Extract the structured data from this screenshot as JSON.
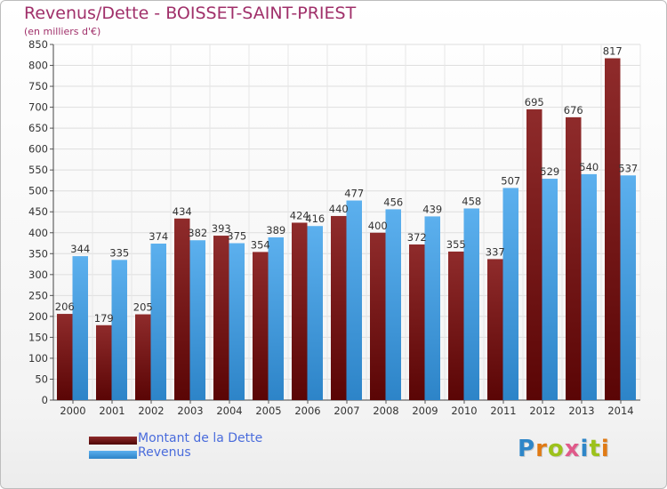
{
  "header": {
    "title": "Revenus/Dette - BOISSET-SAINT-PRIEST",
    "subtitle": "(en milliers d'€)"
  },
  "chart_data": {
    "type": "bar",
    "categories": [
      "2000",
      "2001",
      "2002",
      "2003",
      "2004",
      "2005",
      "2006",
      "2007",
      "2008",
      "2009",
      "2010",
      "2011",
      "2012",
      "2013",
      "2014"
    ],
    "series": [
      {
        "name": "Montant de la Dette",
        "color": "#8b1a1a",
        "values": [
          206,
          179,
          205,
          434,
          393,
          354,
          424,
          440,
          400,
          372,
          355,
          337,
          695,
          676,
          817
        ]
      },
      {
        "name": "Revenus",
        "color": "#3d9ae0",
        "values": [
          344,
          335,
          374,
          382,
          375,
          389,
          416,
          477,
          456,
          439,
          458,
          507,
          529,
          540,
          537
        ]
      }
    ],
    "ylim": [
      0,
      850
    ],
    "ytick_step": 50,
    "grid": true,
    "legend_position": "bottom-left"
  },
  "legend": {
    "items": [
      {
        "label": "Montant de la Dette",
        "color": "#8b1a1a"
      },
      {
        "label": "Revenus",
        "color": "#3d9ae0"
      }
    ]
  },
  "logo": {
    "text": "Proxiti"
  }
}
